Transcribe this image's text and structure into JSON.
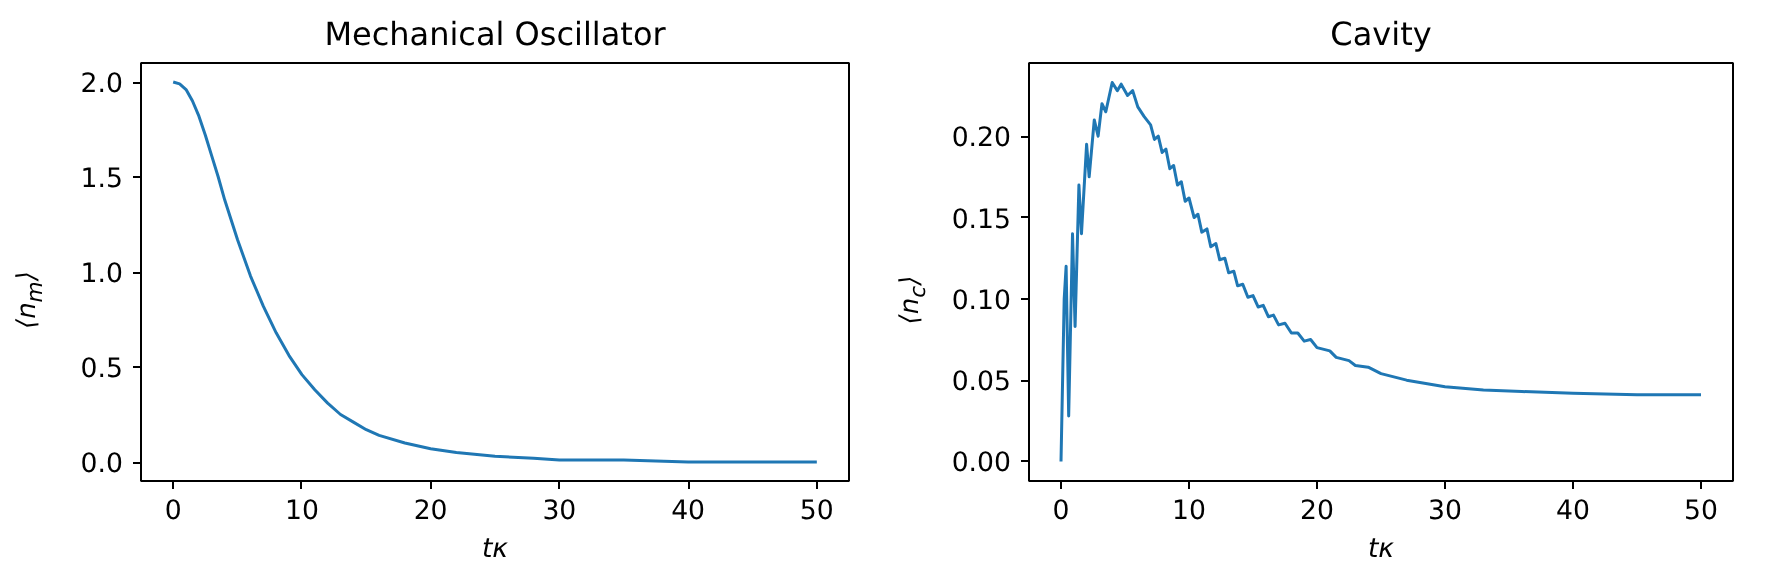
{
  "chart_data": [
    {
      "type": "line",
      "title": "Mechanical Oscillator",
      "xlabel": "tκ",
      "ylabel": "⟨n$_{m}$⟩",
      "xlim": [
        -2.5,
        52.5
      ],
      "ylim": [
        -0.1,
        2.1
      ],
      "xticks": [
        0,
        10,
        20,
        30,
        40,
        50
      ],
      "yticks": [
        {
          "value": 0,
          "label": "0.0"
        },
        {
          "value": 0.5,
          "label": "0.5"
        },
        {
          "value": 1,
          "label": "1.0"
        },
        {
          "value": 1.5,
          "label": "1.5"
        },
        {
          "value": 2,
          "label": "2.0"
        }
      ],
      "grid": false,
      "series": [
        {
          "color": "#1f77b4",
          "x": [
            0,
            0.5,
            1,
            1.5,
            2,
            2.5,
            3,
            3.5,
            4,
            5,
            6,
            7,
            8,
            9,
            10,
            11,
            12,
            13,
            14,
            15,
            16,
            18,
            20,
            22,
            25,
            28,
            30,
            35,
            40,
            45,
            50
          ],
          "values": [
            2.0,
            1.99,
            1.96,
            1.9,
            1.82,
            1.72,
            1.61,
            1.5,
            1.38,
            1.17,
            0.98,
            0.82,
            0.68,
            0.56,
            0.46,
            0.38,
            0.31,
            0.25,
            0.21,
            0.17,
            0.14,
            0.1,
            0.07,
            0.05,
            0.03,
            0.02,
            0.01,
            0.01,
            0.0,
            0.0,
            0.0
          ]
        }
      ]
    },
    {
      "type": "line",
      "title": "Cavity",
      "xlabel": "tκ",
      "ylabel": "⟨n$_{c}$⟩",
      "xlim": [
        -2.5,
        52.5
      ],
      "ylim": [
        -0.012,
        0.245
      ],
      "xticks": [
        0,
        10,
        20,
        30,
        40,
        50
      ],
      "yticks": [
        {
          "value": 0,
          "label": "0.00"
        },
        {
          "value": 0.05,
          "label": "0.05"
        },
        {
          "value": 0.1,
          "label": "0.10"
        },
        {
          "value": 0.15,
          "label": "0.15"
        },
        {
          "value": 0.2,
          "label": "0.20"
        }
      ],
      "grid": false,
      "series": [
        {
          "color": "#1f77b4",
          "x": [
            0,
            0.25,
            0.4,
            0.6,
            0.9,
            1.1,
            1.4,
            1.6,
            2.0,
            2.2,
            2.6,
            2.9,
            3.2,
            3.5,
            4.0,
            4.4,
            4.7,
            5.2,
            5.6,
            6.0,
            6.5,
            7.0,
            7.3,
            7.6,
            7.9,
            8.2,
            8.5,
            8.8,
            9.1,
            9.4,
            9.7,
            10.0,
            10.4,
            10.7,
            11.0,
            11.4,
            11.7,
            12.1,
            12.4,
            12.8,
            13.1,
            13.5,
            13.8,
            14.2,
            14.6,
            15.0,
            15.4,
            15.8,
            16.2,
            16.6,
            17.0,
            17.5,
            18.0,
            18.5,
            19.0,
            19.5,
            20.0,
            21.0,
            21.5,
            22.5,
            23.0,
            24.0,
            25.0,
            27.0,
            30.0,
            33.0,
            36.0,
            40.0,
            45.0,
            50.0
          ],
          "values": [
            0,
            0.1,
            0.12,
            0.028,
            0.14,
            0.083,
            0.17,
            0.14,
            0.195,
            0.175,
            0.21,
            0.2,
            0.22,
            0.215,
            0.233,
            0.228,
            0.232,
            0.225,
            0.228,
            0.218,
            0.212,
            0.207,
            0.198,
            0.2,
            0.19,
            0.192,
            0.18,
            0.182,
            0.17,
            0.172,
            0.16,
            0.162,
            0.15,
            0.152,
            0.141,
            0.143,
            0.132,
            0.134,
            0.124,
            0.125,
            0.116,
            0.117,
            0.108,
            0.109,
            0.101,
            0.102,
            0.095,
            0.096,
            0.089,
            0.09,
            0.084,
            0.085,
            0.079,
            0.079,
            0.074,
            0.075,
            0.07,
            0.068,
            0.064,
            0.062,
            0.059,
            0.058,
            0.054,
            0.05,
            0.046,
            0.044,
            0.043,
            0.042,
            0.041,
            0.041
          ]
        }
      ]
    }
  ]
}
